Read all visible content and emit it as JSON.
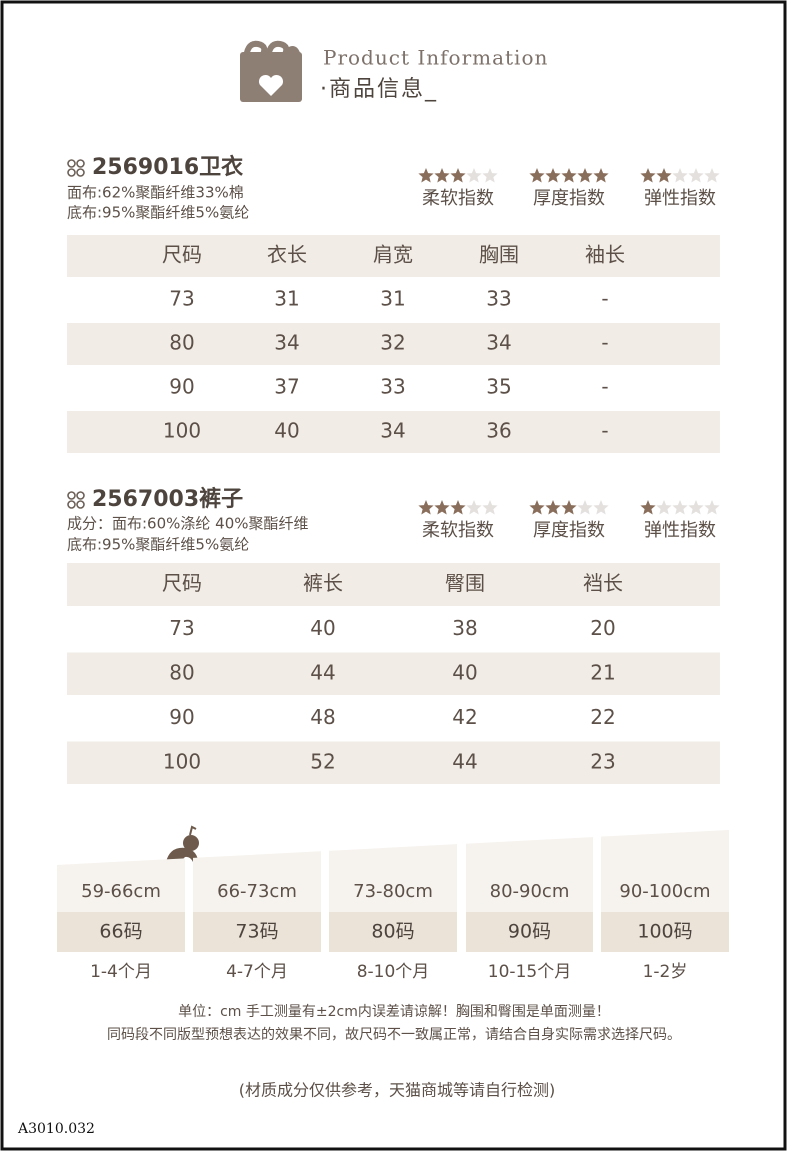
{
  "header": {
    "title_en": "Product Information",
    "title_cn": "·商品信息_"
  },
  "max_stars": 5,
  "products": [
    {
      "title": "2569016卫衣",
      "materials": [
        "面布:62%聚酯纤维33%棉",
        "底布:95%聚酯纤维5%氨纶"
      ],
      "ratings": [
        {
          "label": "柔软指数",
          "stars": 3
        },
        {
          "label": "厚度指数",
          "stars": 5
        },
        {
          "label": "弹性指数",
          "stars": 2
        }
      ],
      "table": {
        "header": [
          "尺码",
          "衣长",
          "肩宽",
          "胸围",
          "袖长"
        ],
        "rows": [
          [
            "73",
            "31",
            "31",
            "33",
            "-"
          ],
          [
            "80",
            "34",
            "32",
            "34",
            "-"
          ],
          [
            "90",
            "37",
            "33",
            "35",
            "-"
          ],
          [
            "100",
            "40",
            "34",
            "36",
            "-"
          ]
        ]
      }
    },
    {
      "title": "2567003裤子",
      "materials": [
        "成分：面布:60%涤纶 40%聚酯纤维",
        "底布:95%聚酯纤维5%氨纶"
      ],
      "ratings": [
        {
          "label": "柔软指数",
          "stars": 3
        },
        {
          "label": "厚度指数",
          "stars": 3
        },
        {
          "label": "弹性指数",
          "stars": 1
        }
      ],
      "table": {
        "header": [
          "尺码",
          "裤长",
          "臀围",
          "裆长"
        ],
        "rows": [
          [
            "73",
            "40",
            "38",
            "20"
          ],
          [
            "80",
            "44",
            "40",
            "21"
          ],
          [
            "90",
            "48",
            "42",
            "22"
          ],
          [
            "100",
            "52",
            "44",
            "23"
          ]
        ]
      }
    }
  ],
  "size_guide": [
    {
      "height": "59-66cm",
      "size": "66码",
      "age": "1-4个月"
    },
    {
      "height": "66-73cm",
      "size": "73码",
      "age": "4-7个月"
    },
    {
      "height": "73-80cm",
      "size": "80码",
      "age": "8-10个月"
    },
    {
      "height": "80-90cm",
      "size": "90码",
      "age": "10-15个月"
    },
    {
      "height": "90-100cm",
      "size": "100码",
      "age": "1-2岁"
    }
  ],
  "notes": [
    "单位：cm 手工测量有±2cm内误差请谅解！胸围和臀围是单面测量！",
    "同码段不同版型预想表达的效果不同，故尺码不一致属正常，请结合自身实际需求选择尺码。"
  ],
  "disclaimer": "(材质成分仅供参考，天猫商城等请自行检测)",
  "code": "A3010.032"
}
